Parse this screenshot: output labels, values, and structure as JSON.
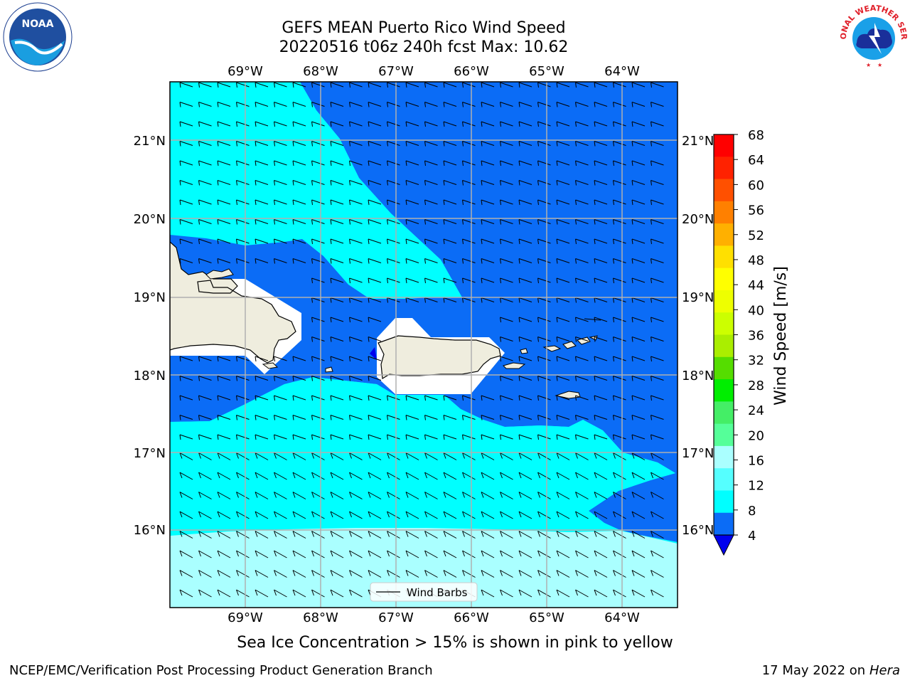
{
  "header": {
    "title": "GEFS MEAN Puerto Rico Wind Speed",
    "subtitle": "20220516 t06z 240h fcst   Max: 10.62"
  },
  "map": {
    "lon_ticks": [
      "69°W",
      "68°W",
      "67°W",
      "66°W",
      "65°W",
      "64°W"
    ],
    "lat_ticks": [
      "21°N",
      "20°N",
      "19°N",
      "18°N",
      "17°N",
      "16°N"
    ],
    "legend_label": "Wind Barbs",
    "land_color": "#efedde",
    "band_4_8_color": "#0b6cf6",
    "band_8_12_color": "#00ffff",
    "band_12_16_color": "#aaffff"
  },
  "colorbar": {
    "label": "Wind Speed [m/s]",
    "ticks": [
      "68",
      "64",
      "60",
      "56",
      "52",
      "48",
      "44",
      "40",
      "36",
      "32",
      "28",
      "24",
      "20",
      "16",
      "12",
      "8",
      "4"
    ],
    "colors_top_to_bottom": [
      "#ff0000",
      "#ff2200",
      "#ff5000",
      "#ff8000",
      "#ffb000",
      "#ffe000",
      "#ffff00",
      "#eeff00",
      "#ccff00",
      "#aaee00",
      "#55dd00",
      "#00ee00",
      "#44ee66",
      "#55ff99",
      "#aaffff",
      "#55ffff",
      "#00ffff",
      "#0b6cf6"
    ],
    "extend_color": "#0000ee"
  },
  "note": "Sea Ice Concentration > 15% is shown in pink to yellow",
  "footer": {
    "left": "NCEP/EMC/Verification Post Processing Product Generation Branch",
    "right_date": "17 May 2022 on",
    "right_host": "Hera"
  },
  "logos": {
    "noaa_text": "NOAA",
    "nws_text": "NATIONAL WEATHER SERVICE"
  }
}
